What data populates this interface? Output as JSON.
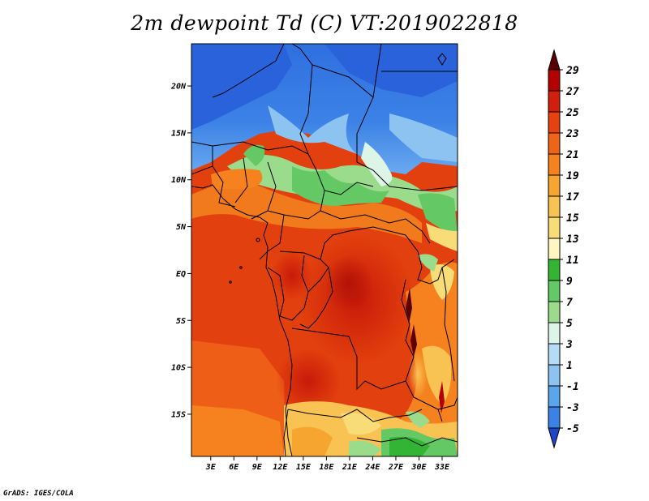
{
  "title": "2m dewpoint Td (C) VT:2019022818",
  "credit": "GrADS: IGES/COLA",
  "map": {
    "lat_labels": [
      "20N",
      "15N",
      "10N",
      "5N",
      "EQ",
      "5S",
      "10S",
      "15S"
    ],
    "lat_values": [
      20,
      15,
      10,
      5,
      0,
      -5,
      -10,
      -15
    ],
    "lon_labels": [
      "3E",
      "6E",
      "9E",
      "12E",
      "15E",
      "18E",
      "21E",
      "24E",
      "27E",
      "30E",
      "33E"
    ],
    "lon_values": [
      3,
      6,
      9,
      12,
      15,
      18,
      21,
      24,
      27,
      30,
      33
    ],
    "lon_range": [
      0.5,
      35
    ],
    "lat_range": [
      -19.5,
      24.5
    ]
  },
  "colorbar": {
    "labels": [
      "29",
      "27",
      "25",
      "23",
      "21",
      "19",
      "17",
      "15",
      "13",
      "11",
      "9",
      "7",
      "5",
      "3",
      "1",
      "-1",
      "-3",
      "-5"
    ],
    "colors": [
      "#5a0000",
      "#b40000",
      "#d21e0c",
      "#e6410f",
      "#f0641a",
      "#f5821e",
      "#f7a531",
      "#f8c352",
      "#f8dc78",
      "#fff5c0",
      "#34b434",
      "#64c864",
      "#9bdc8c",
      "#dcf5e6",
      "#b4dcf5",
      "#8cc3f0",
      "#5aa5ec",
      "#3c82e6",
      "#1e5adc",
      "#1e46c8"
    ]
  }
}
